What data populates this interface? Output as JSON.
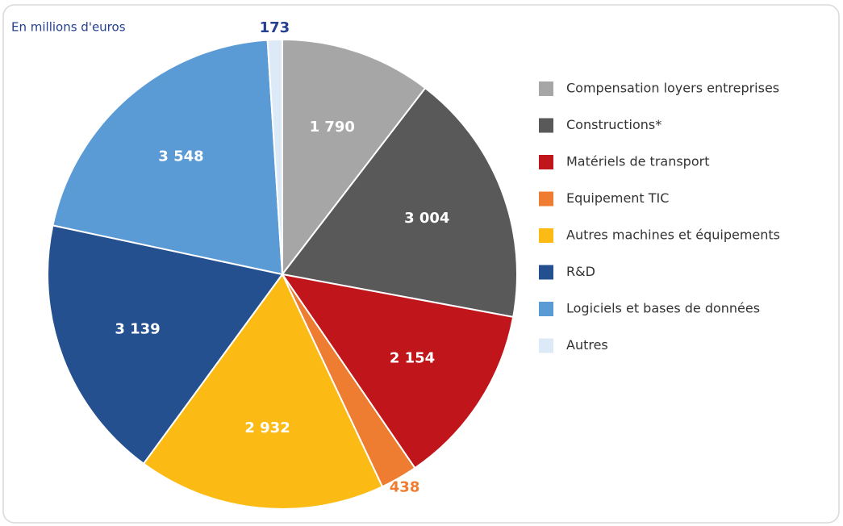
{
  "chart_data": {
    "type": "pie",
    "subtitle": "En millions d'euros",
    "categories": [
      "Compensation loyers entreprises",
      "Constructions*",
      "Matériels de transport",
      "Equipement TIC",
      "Autres machines et équipements",
      "R&D",
      "Logiciels et bases de données",
      "Autres"
    ],
    "values": [
      1790,
      3004,
      2154,
      438,
      2932,
      3139,
      3548,
      173
    ],
    "value_labels": [
      "1 790",
      "3 004",
      "2 154",
      "438",
      "2 932",
      "3 139",
      "3 548",
      "173"
    ],
    "colors": [
      "#a6a6a6",
      "#595959",
      "#c0151a",
      "#ee7d31",
      "#fbbb14",
      "#24508f",
      "#5a9bd5",
      "#dce9f6"
    ],
    "label_colors": [
      "#ffffff",
      "#ffffff",
      "#ffffff",
      "#ee7d31",
      "#ffffff",
      "#ffffff",
      "#ffffff",
      "#24408f"
    ],
    "legend": "right"
  }
}
